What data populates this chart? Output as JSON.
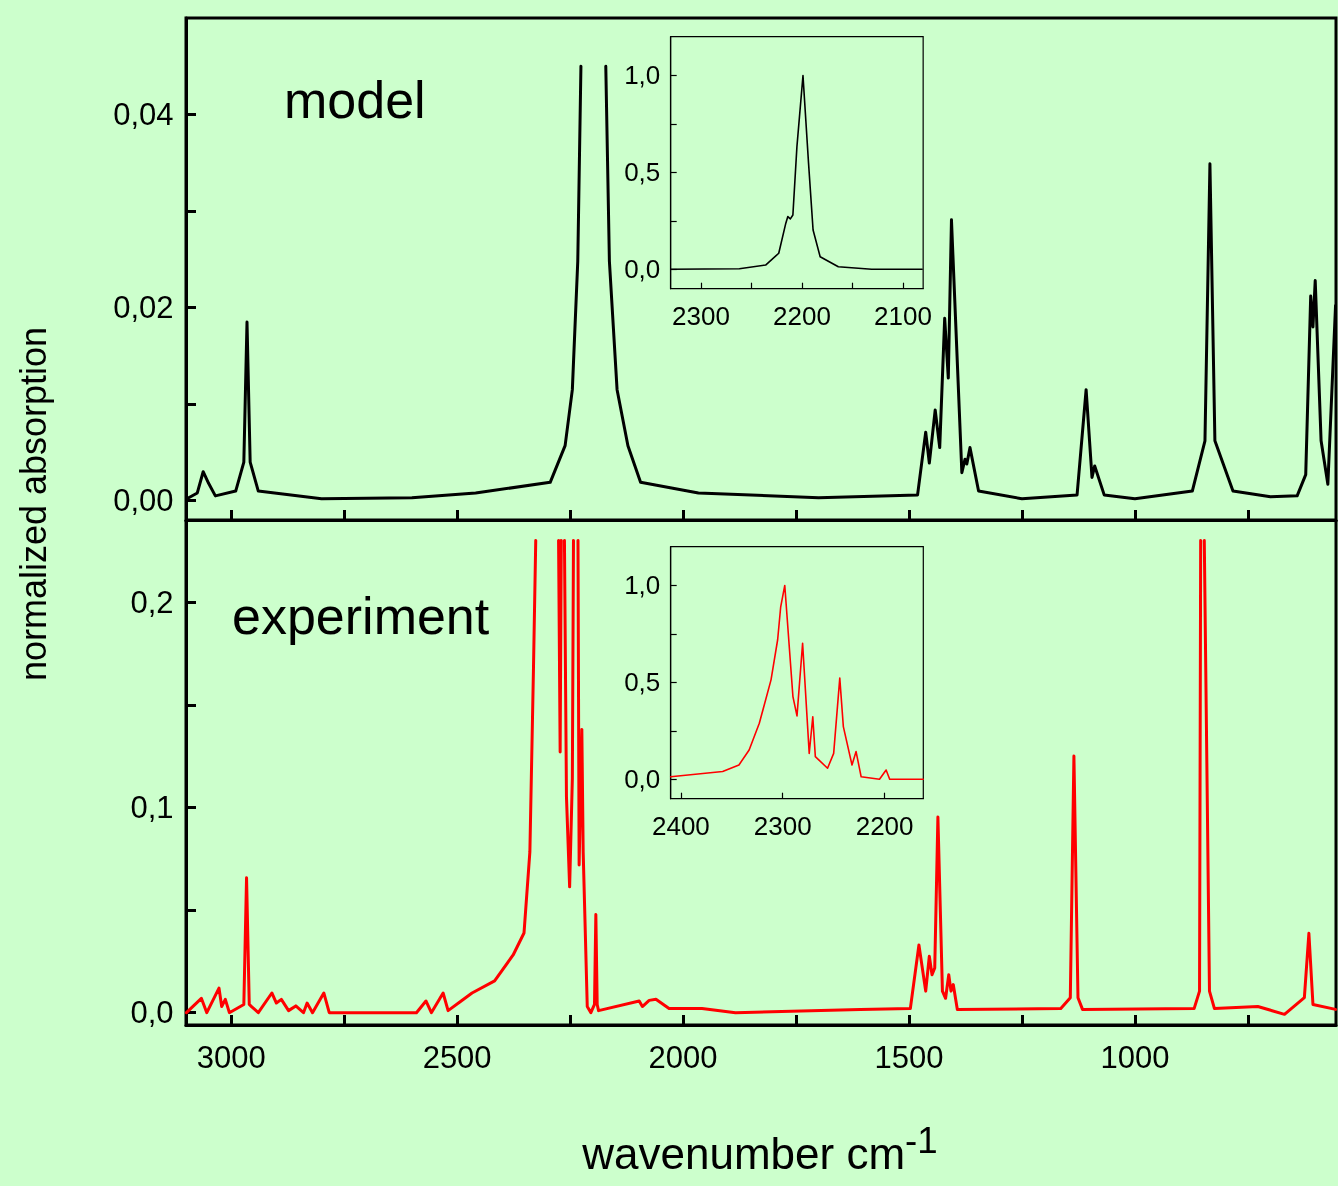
{
  "chart_data": [
    {
      "type": "line",
      "color": "#000000",
      "ylabel": "normalized absorption",
      "annotations": [
        "model"
      ],
      "tick_labels": "y",
      "xlim": [
        3100,
        555
      ],
      "xticks": [
        3000,
        {
          "value": 2750,
          "label": null
        },
        2500,
        {
          "value": 2250,
          "label": null
        },
        2000,
        {
          "value": 1750,
          "label": null
        },
        1500,
        {
          "value": 1250,
          "label": null
        },
        1000,
        {
          "value": 750,
          "label": null
        }
      ],
      "ylim": [
        -0.002,
        0.05
      ],
      "yticks": [
        {
          "value": 0,
          "label": "0,00"
        },
        {
          "value": 0.01,
          "label": null
        },
        {
          "value": 0.02,
          "label": "0,02"
        },
        {
          "value": 0.03,
          "label": null
        },
        {
          "value": 0.04,
          "label": "0,04"
        }
      ],
      "x": [
        3098,
        3075,
        3062,
        3050,
        3035,
        2990,
        2972,
        2965,
        2958,
        2940,
        2800,
        2600,
        2459,
        2294,
        2261,
        2245,
        2233,
        2226,
        2198,
        2171,
        2163,
        2146,
        2122,
        2094,
        1966,
        1700,
        1481,
        1463,
        1455,
        1442,
        1432,
        1421,
        1413,
        1406,
        1383,
        1376,
        1372,
        1365,
        1346,
        1250,
        1128,
        1108,
        1095,
        1089,
        1068,
        1000,
        873,
        845,
        834,
        823,
        783,
        700,
        641,
        622,
        611,
        606,
        601,
        588,
        573,
        556
      ],
      "values": [
        0.0002,
        0.0008,
        0.003,
        0.0018,
        0.0005,
        0.001,
        0.004,
        0.0185,
        0.004,
        0.001,
        0.0002,
        0.0003,
        0.0008,
        0.0019,
        0.0057,
        0.0115,
        0.0248,
        0.045,
        null,
        0.045,
        0.0248,
        0.0115,
        0.0057,
        0.0019,
        0.0008,
        0.0003,
        0.0006,
        0.0071,
        0.0039,
        0.0094,
        0.0055,
        0.0189,
        0.0127,
        0.0291,
        0.0029,
        0.0043,
        0.0038,
        0.0055,
        0.001,
        0.0002,
        0.0006,
        0.0115,
        0.0024,
        0.0036,
        0.0006,
        0.0002,
        0.001,
        0.0062,
        0.0349,
        0.0062,
        0.001,
        0.0004,
        0.0005,
        0.0027,
        0.0212,
        0.018,
        0.0228,
        0.0062,
        0.0017,
        0.0202
      ]
    },
    {
      "type": "line",
      "color": "#ff0000",
      "xlabel": "wavenumber cm$^{-1}$",
      "annotations": [
        "experiment"
      ],
      "xlim": [
        3100,
        555
      ],
      "xticks": [
        3000,
        {
          "value": 2750,
          "label": null
        },
        2500,
        {
          "value": 2250,
          "label": null
        },
        2000,
        {
          "value": 1750,
          "label": null
        },
        1500,
        {
          "value": 1250,
          "label": null
        },
        1000,
        {
          "value": 750,
          "label": null
        }
      ],
      "ylim": [
        -0.006,
        0.24
      ],
      "yticks": [
        {
          "value": 0,
          "label": "0,0"
        },
        {
          "value": 0.05,
          "label": null
        },
        {
          "value": 0.1,
          "label": "0,1"
        },
        {
          "value": 0.15,
          "label": null
        },
        {
          "value": 0.2,
          "label": "0,2"
        }
      ],
      "x": [
        3099,
        3066,
        3054,
        3027,
        3021,
        3013,
        3004,
        2972,
        2966,
        2960,
        2955,
        2940,
        2910,
        2900,
        2889,
        2873,
        2857,
        2840,
        2832,
        2820,
        2795,
        2783,
        2590,
        2569,
        2557,
        2531,
        2520,
        2491,
        2467,
        2417,
        2376,
        2352,
        2339,
        2331,
        2326,
        2300,
        2275.5,
        2272,
        2269.5,
        2266,
        2262.5,
        2258,
        2251,
        2245,
        2242.5,
        2238,
        2232.5,
        2230,
        2224,
        2221,
        2212,
        2204,
        2196,
        2193,
        2190,
        2187,
        2097,
        2090,
        2075,
        2060,
        2031,
        1958,
        1884,
        1608,
        1497,
        1478,
        1463,
        1455,
        1449,
        1443,
        1436,
        1426,
        1419,
        1412,
        1407,
        1402,
        1393,
        1164,
        1143,
        1135,
        1126,
        1116,
        869,
        857,
        854.5,
        850,
        846.5,
        835,
        824,
        728,
        669,
        625,
        615,
        606,
        556
      ],
      "values": [
        0,
        0.007,
        0,
        0.012,
        0.003,
        0.0065,
        0,
        0.004,
        0.0657,
        0.004,
        0.003,
        0,
        0.0096,
        0.0047,
        0.0065,
        0.001,
        0.0033,
        0,
        0.0047,
        0,
        0.0096,
        0,
        0,
        0.0057,
        0,
        0.0096,
        0.001,
        0.0057,
        0.0096,
        0.0155,
        0.0281,
        0.0388,
        0.0783,
        0.168,
        0.23,
        null,
        0.23,
        0.127,
        0.23,
        null,
        0.23,
        0.105,
        0.0613,
        0.114,
        0.23,
        null,
        0.23,
        0.072,
        0.138,
        0.078,
        0.003,
        0,
        0.004,
        0.0478,
        0.004,
        0.001,
        0.0057,
        0.003,
        0.006,
        0.0065,
        0.002,
        0.002,
        0,
        0.0016,
        0.002,
        0.033,
        0.0105,
        0.0275,
        0.0185,
        0.0218,
        0.0953,
        0.0105,
        0.007,
        0.0185,
        0.0105,
        0.0137,
        0.0016,
        0.002,
        0.0073,
        0.125,
        0.0073,
        0.0016,
        0.002,
        0.0105,
        0.23,
        null,
        0.23,
        0.0105,
        0.002,
        0.003,
        -0.0008,
        0.0073,
        0.0387,
        0.004,
        0.0016
      ]
    },
    {
      "type": "line",
      "color": "#000000",
      "xlim": [
        2330,
        2080
      ],
      "xticks": [
        2300,
        {
          "value": 2250,
          "label": null
        },
        2200,
        {
          "value": 2150,
          "label": null
        },
        2100
      ],
      "ylim": [
        -0.1,
        1.2
      ],
      "yticks": [
        {
          "value": 0,
          "label": "0,0"
        },
        {
          "value": 0.25,
          "label": null
        },
        {
          "value": 0.5,
          "label": "0,5"
        },
        {
          "value": 0.75,
          "label": null
        },
        {
          "value": 1,
          "label": "1,0"
        }
      ],
      "x": [
        2330,
        2262,
        2236,
        2223,
        2216,
        2214,
        2211.5,
        2209,
        2205,
        2199,
        2193.5,
        2189,
        2182,
        2164,
        2131,
        2081
      ],
      "values": [
        0,
        0.003,
        0.022,
        0.083,
        0.238,
        0.272,
        0.26,
        0.28,
        0.633,
        1.0,
        0.548,
        0.203,
        0.065,
        0.013,
        0,
        0
      ]
    },
    {
      "type": "line",
      "color": "#ff0000",
      "xlim": [
        2410,
        2162
      ],
      "xticks": [
        2400,
        2300,
        2200
      ],
      "ylim": [
        -0.1,
        1.2
      ],
      "yticks": [
        {
          "value": 0,
          "label": "0,0"
        },
        {
          "value": 0.25,
          "label": null
        },
        {
          "value": 0.5,
          "label": "0,5"
        },
        {
          "value": 0.75,
          "label": null
        },
        {
          "value": 1,
          "label": "1,0"
        }
      ],
      "x": [
        2410,
        2359,
        2343,
        2333,
        2323,
        2311.5,
        2305,
        2302,
        2298,
        2290,
        2286,
        2280.5,
        2274,
        2270.5,
        2268,
        2256,
        2250,
        2244,
        2240.5,
        2232,
        2228,
        2223,
        2205,
        2198.5,
        2195,
        2162
      ],
      "values": [
        0.013,
        0.04,
        0.074,
        0.151,
        0.289,
        0.513,
        0.72,
        0.89,
        1.0,
        0.427,
        0.327,
        0.702,
        0.134,
        0.323,
        0.117,
        0.057,
        0.134,
        0.522,
        0.272,
        0.074,
        0.143,
        0.013,
        0,
        0.048,
        0,
        0
      ]
    }
  ]
}
